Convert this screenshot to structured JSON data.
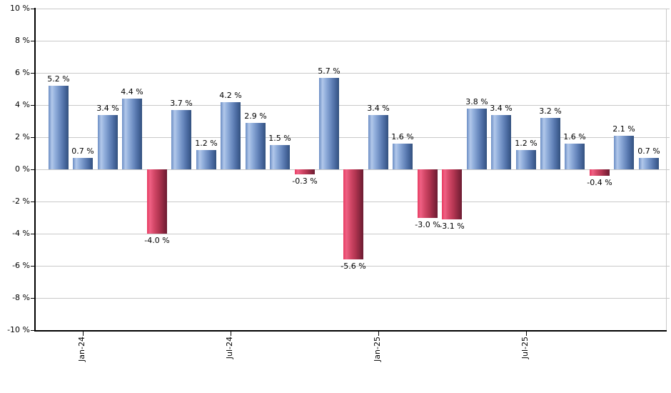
{
  "chart_data": {
    "type": "bar",
    "title": "",
    "xlabel": "",
    "ylabel": "",
    "ylim": [
      -10,
      10
    ],
    "grid": "horizontal",
    "legend": "none",
    "values": [
      5.2,
      0.7,
      3.4,
      4.4,
      -4.0,
      3.7,
      1.2,
      4.2,
      2.9,
      1.5,
      -0.3,
      5.7,
      -5.6,
      3.4,
      1.6,
      -3.0,
      -3.1,
      3.8,
      3.4,
      1.2,
      3.2,
      1.6,
      -0.4,
      2.1,
      0.7
    ],
    "bar_labels": [
      "5.2 %",
      "0.7 %",
      "3.4 %",
      "4.4 %",
      "-4.0 %",
      "3.7 %",
      "1.2 %",
      "4.2 %",
      "2.9 %",
      "1.5 %",
      "-0.3 %",
      "5.7 %",
      "-5.6 %",
      "3.4 %",
      "1.6 %",
      "-3.0 %",
      "-3.1 %",
      "3.8 %",
      "3.4 %",
      "1.2 %",
      "3.2 %",
      "1.6 %",
      "-0.4 %",
      "2.1 %",
      "0.7 %"
    ],
    "x_ticks": [
      {
        "label": "Jan-24",
        "bar_index": 1
      },
      {
        "label": "Jul-24",
        "bar_index": 7
      },
      {
        "label": "Jan-25",
        "bar_index": 13
      },
      {
        "label": "Jul-25",
        "bar_index": 19
      }
    ],
    "y_ticks": [
      {
        "label": "10 %",
        "value": 10
      },
      {
        "label": "8 %",
        "value": 8
      },
      {
        "label": "6 %",
        "value": 6
      },
      {
        "label": "4 %",
        "value": 4
      },
      {
        "label": "2 %",
        "value": 2
      },
      {
        "label": "0 %",
        "value": 0
      },
      {
        "label": "-2 %",
        "value": -2
      },
      {
        "label": "-4 %",
        "value": -4
      },
      {
        "label": "-6 %",
        "value": -6
      },
      {
        "label": "-8 %",
        "value": -8
      },
      {
        "label": "-10 %",
        "value": -10
      }
    ],
    "colors": {
      "positive_gradient": [
        "#6b8dc4",
        "#b2c8ea",
        "#92afdc",
        "#6787bd",
        "#49699f",
        "#33517e"
      ],
      "negative_gradient": [
        "#e73a61",
        "#ef6184",
        "#d44868",
        "#b23551",
        "#8c2740",
        "#6c1c32"
      ],
      "grid_line": "#c9c9c9",
      "axis_line": "#000000",
      "label_text": "#000000",
      "background": "#ffffff"
    }
  }
}
